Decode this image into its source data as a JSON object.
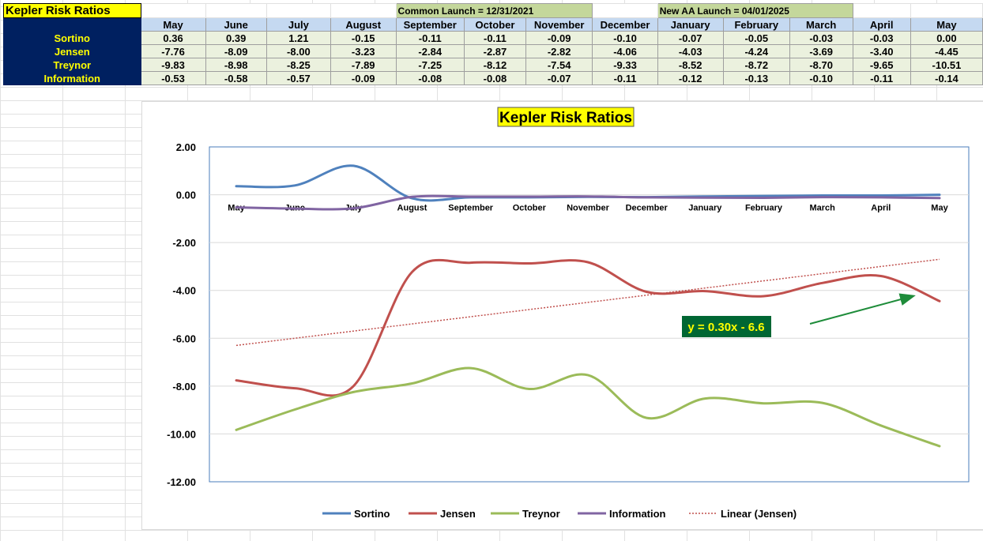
{
  "sheet": {
    "title": "Kepler Risk Ratios",
    "launch_labels": [
      "Common Launch = 12/31/2021",
      "New AA Launch = 04/01/2025"
    ],
    "months": [
      "May",
      "June",
      "July",
      "August",
      "September",
      "October",
      "November",
      "December",
      "January",
      "February",
      "March",
      "April",
      "May"
    ],
    "rows": [
      {
        "label": "Sortino",
        "values": [
          "0.36",
          "0.39",
          "1.21",
          "-0.15",
          "-0.11",
          "-0.11",
          "-0.09",
          "-0.10",
          "-0.07",
          "-0.05",
          "-0.03",
          "-0.03",
          "0.00"
        ]
      },
      {
        "label": "Jensen",
        "values": [
          "-7.76",
          "-8.09",
          "-8.00",
          "-3.23",
          "-2.84",
          "-2.87",
          "-2.82",
          "-4.06",
          "-4.03",
          "-4.24",
          "-3.69",
          "-3.40",
          "-4.45"
        ]
      },
      {
        "label": "Treynor",
        "values": [
          "-9.83",
          "-8.98",
          "-8.25",
          "-7.89",
          "-7.25",
          "-8.12",
          "-7.54",
          "-9.33",
          "-8.52",
          "-8.72",
          "-8.70",
          "-9.65",
          "-10.51"
        ]
      },
      {
        "label": "Information",
        "values": [
          "-0.53",
          "-0.58",
          "-0.57",
          "-0.09",
          "-0.08",
          "-0.08",
          "-0.07",
          "-0.11",
          "-0.12",
          "-0.13",
          "-0.10",
          "-0.11",
          "-0.14"
        ]
      }
    ]
  },
  "chart_data": {
    "type": "line",
    "title": "Kepler Risk Ratios",
    "categories": [
      "May",
      "June",
      "July",
      "August",
      "September",
      "October",
      "November",
      "December",
      "January",
      "February",
      "March",
      "April",
      "May"
    ],
    "y_ticks": [
      "2.00",
      "0.00",
      "-2.00",
      "-4.00",
      "-6.00",
      "-8.00",
      "-10.00",
      "-12.00"
    ],
    "ylim": [
      -12,
      2
    ],
    "grid": true,
    "legend_position": "bottom",
    "series": [
      {
        "name": "Sortino",
        "color": "#4f81bd",
        "values": [
          0.36,
          0.39,
          1.21,
          -0.15,
          -0.11,
          -0.11,
          -0.09,
          -0.1,
          -0.07,
          -0.05,
          -0.03,
          -0.03,
          0.0
        ]
      },
      {
        "name": "Jensen",
        "color": "#c0504d",
        "values": [
          -7.76,
          -8.09,
          -8.0,
          -3.23,
          -2.84,
          -2.87,
          -2.82,
          -4.06,
          -4.03,
          -4.24,
          -3.69,
          -3.4,
          -4.45
        ]
      },
      {
        "name": "Treynor",
        "color": "#9bbb59",
        "values": [
          -9.83,
          -8.98,
          -8.25,
          -7.89,
          -7.25,
          -8.12,
          -7.54,
          -9.33,
          -8.52,
          -8.72,
          -8.7,
          -9.65,
          -10.51
        ]
      },
      {
        "name": "Information",
        "color": "#8064a2",
        "values": [
          -0.53,
          -0.58,
          -0.57,
          -0.09,
          -0.08,
          -0.08,
          -0.07,
          -0.11,
          -0.12,
          -0.13,
          -0.1,
          -0.11,
          -0.14
        ]
      }
    ],
    "trendline": {
      "name": "Linear (Jensen)",
      "color": "#c0504d",
      "slope": 0.3,
      "intercept": -6.6
    },
    "annotation": {
      "text": "y = 0.30x - 6.6",
      "background": "#006633",
      "color": "#ffff00",
      "arrow_color": "#1e8c3a"
    }
  }
}
